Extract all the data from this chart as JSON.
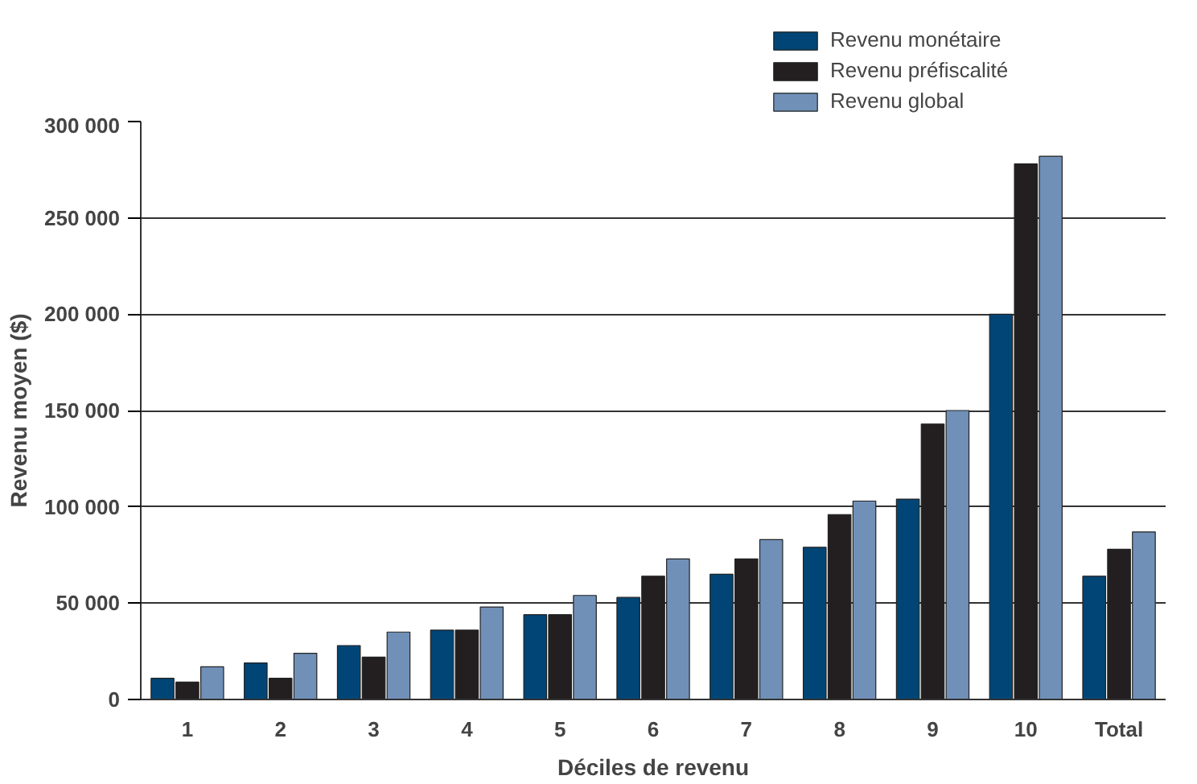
{
  "chart_data": {
    "type": "bar",
    "xlabel": "Déciles de revenu",
    "ylabel": "Revenu moyen ($)",
    "categories": [
      "1",
      "2",
      "3",
      "4",
      "5",
      "6",
      "7",
      "8",
      "9",
      "10",
      "Total"
    ],
    "series": [
      {
        "name": "Revenu monétaire",
        "color": "#004575",
        "values": [
          11000,
          19000,
          28000,
          36000,
          44000,
          53000,
          65000,
          79000,
          104000,
          200000,
          64000
        ]
      },
      {
        "name": "Revenu préfiscalité",
        "color": "#231f20",
        "values": [
          9000,
          11000,
          22000,
          36000,
          44000,
          64000,
          73000,
          96000,
          143000,
          278000,
          78000
        ]
      },
      {
        "name": "Revenu global",
        "color": "#7090b8",
        "values": [
          17000,
          24000,
          35000,
          48000,
          54000,
          73000,
          83000,
          103000,
          150000,
          282000,
          87000
        ]
      }
    ],
    "ylim": [
      0,
      300000
    ],
    "yticks": [
      0,
      {
        "value": 50000,
        "label": "50 000"
      },
      {
        "value": 100000,
        "label": "100 000"
      },
      {
        "value": 150000,
        "label": "150 000"
      },
      {
        "value": 200000,
        "label": "200 000"
      },
      {
        "value": 250000,
        "label": "250 000"
      },
      {
        "value": 300000,
        "label": "300 000"
      }
    ],
    "grid": "y",
    "legend": "top right"
  }
}
